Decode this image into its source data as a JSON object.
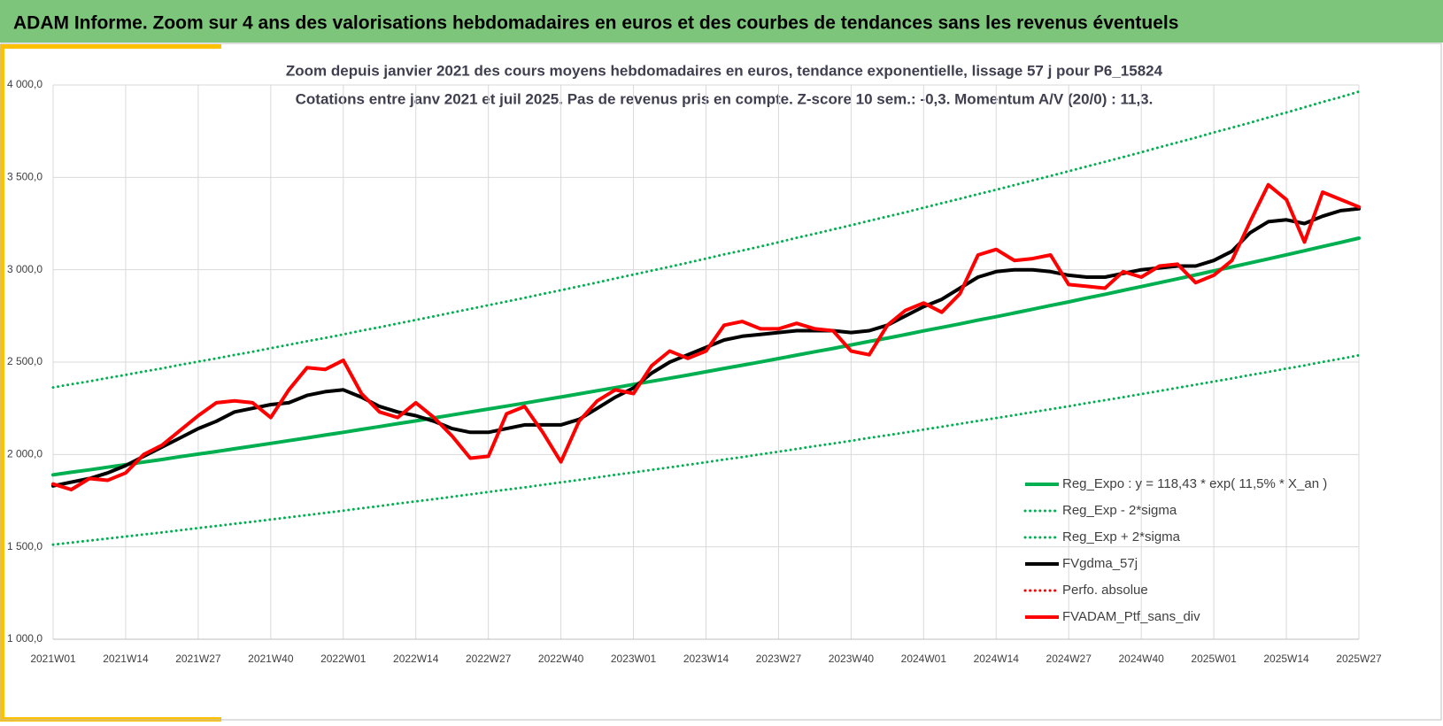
{
  "header": {
    "title": "ADAM Informe. Zoom sur 4 ans des valorisations hebdomadaires en euros et des courbes de tendances sans les revenus éventuels"
  },
  "chart_data": {
    "type": "line",
    "title": "Zoom depuis janvier 2021 des cours moyens hebdomadaires  en euros, tendance exponentielle, lissage 57 j pour P6_15824",
    "subtitle": "Cotations entre janv 2021 et juil 2025. Pas de revenus pris en compte. Z-score 10 sem.: -0,3. Momentum A/V (20/0) : 11,3.",
    "categories": [
      "2021W01",
      null,
      null,
      null,
      "2021W14",
      null,
      null,
      null,
      "2021W27",
      null,
      null,
      null,
      "2021W40",
      null,
      null,
      null,
      "2022W01",
      null,
      null,
      null,
      "2022W14",
      null,
      null,
      null,
      "2022W27",
      null,
      null,
      null,
      "2022W40",
      null,
      null,
      null,
      "2023W01",
      null,
      null,
      null,
      "2023W14",
      null,
      null,
      null,
      "2023W27",
      null,
      null,
      null,
      "2023W40",
      null,
      null,
      null,
      "2024W01",
      null,
      null,
      null,
      "2024W14",
      null,
      null,
      null,
      "2024W27",
      null,
      null,
      null,
      "2024W40",
      null,
      null,
      null,
      "2025W01",
      null,
      null,
      null,
      "2025W14",
      null,
      null,
      null,
      "2025W27"
    ],
    "ylim": [
      1000,
      4000
    ],
    "yticks": [
      {
        "value": 1000,
        "label": "1 000,0"
      },
      {
        "value": 1500,
        "label": "1 500,0"
      },
      {
        "value": 2000,
        "label": "2 000,0"
      },
      {
        "value": 2500,
        "label": "2 500,0"
      },
      {
        "value": 3000,
        "label": "3 000,0"
      },
      {
        "value": 3500,
        "label": "3 500,0"
      },
      {
        "value": 4000,
        "label": "4 000,0"
      }
    ],
    "grid": true,
    "legend": "right",
    "series": [
      {
        "name": "Reg_Expo : y = 118,43 * exp( 11,5% *  X_an )",
        "color": "#00b050",
        "style": "solid",
        "width": 4,
        "values": [
          1890,
          1904,
          1917,
          1931,
          1945,
          1959,
          1973,
          1988,
          2002,
          2016,
          2031,
          2045,
          2060,
          2075,
          2090,
          2105,
          2120,
          2136,
          2151,
          2167,
          2182,
          2198,
          2214,
          2230,
          2246,
          2262,
          2278,
          2295,
          2311,
          2328,
          2345,
          2362,
          2379,
          2396,
          2413,
          2430,
          2448,
          2466,
          2483,
          2501,
          2519,
          2538,
          2556,
          2574,
          2593,
          2612,
          2630,
          2649,
          2669,
          2688,
          2707,
          2727,
          2746,
          2766,
          2786,
          2806,
          2826,
          2847,
          2867,
          2888,
          2909,
          2930,
          2951,
          2972,
          2994,
          3015,
          3037,
          3059,
          3081,
          3103,
          3126,
          3148,
          3171
        ]
      },
      {
        "name": "Reg_Exp - 2*sigma",
        "color": "#00b050",
        "style": "dotted",
        "width": 3,
        "values": [
          1512,
          1523,
          1534,
          1545,
          1556,
          1567,
          1578,
          1590,
          1602,
          1613,
          1625,
          1636,
          1648,
          1660,
          1672,
          1684,
          1696,
          1709,
          1721,
          1734,
          1746,
          1758,
          1771,
          1784,
          1797,
          1810,
          1822,
          1836,
          1849,
          1862,
          1876,
          1890,
          1903,
          1917,
          1930,
          1944,
          1958,
          1973,
          1986,
          2001,
          2015,
          2030,
          2045,
          2059,
          2074,
          2090,
          2104,
          2119,
          2135,
          2150,
          2166,
          2182,
          2197,
          2213,
          2229,
          2245,
          2261,
          2278,
          2294,
          2310,
          2327,
          2344,
          2361,
          2378,
          2395,
          2412,
          2430,
          2447,
          2465,
          2482,
          2501,
          2518,
          2537
        ]
      },
      {
        "name": "Reg_Exp + 2*sigma",
        "color": "#00b050",
        "style": "dotted",
        "width": 3,
        "values": [
          2363,
          2380,
          2396,
          2414,
          2431,
          2449,
          2466,
          2485,
          2503,
          2520,
          2539,
          2556,
          2575,
          2594,
          2613,
          2631,
          2650,
          2670,
          2689,
          2709,
          2728,
          2748,
          2768,
          2788,
          2808,
          2828,
          2848,
          2869,
          2889,
          2910,
          2931,
          2953,
          2974,
          2995,
          3016,
          3038,
          3060,
          3083,
          3104,
          3126,
          3149,
          3173,
          3195,
          3218,
          3241,
          3265,
          3288,
          3311,
          3336,
          3360,
          3384,
          3409,
          3433,
          3458,
          3483,
          3508,
          3533,
          3559,
          3584,
          3610,
          3636,
          3663,
          3689,
          3715,
          3743,
          3769,
          3796,
          3824,
          3851,
          3879,
          3908,
          3935,
          3964
        ]
      },
      {
        "name": "FVgdma_57j",
        "color": "#000000",
        "style": "solid",
        "width": 4,
        "values": [
          1830,
          1850,
          1870,
          1900,
          1940,
          1990,
          2040,
          2090,
          2140,
          2180,
          2230,
          2250,
          2270,
          2280,
          2320,
          2340,
          2350,
          2310,
          2260,
          2230,
          2210,
          2180,
          2140,
          2120,
          2120,
          2140,
          2160,
          2160,
          2160,
          2190,
          2250,
          2310,
          2360,
          2440,
          2500,
          2540,
          2580,
          2620,
          2640,
          2650,
          2660,
          2670,
          2670,
          2670,
          2660,
          2670,
          2700,
          2750,
          2800,
          2840,
          2900,
          2960,
          2990,
          3000,
          3000,
          2990,
          2970,
          2960,
          2960,
          2980,
          3000,
          3010,
          3020,
          3020,
          3050,
          3100,
          3200,
          3260,
          3270,
          3250,
          3290,
          3320,
          3330
        ]
      },
      {
        "name": "Perfo. absolue",
        "color": "#ff0000",
        "style": "dotted",
        "width": 3,
        "values": [
          null,
          null,
          null,
          null,
          null,
          null,
          null,
          null,
          null,
          null,
          null,
          null,
          null,
          null,
          null,
          null,
          null,
          null,
          null,
          null,
          null,
          null,
          null,
          null,
          null,
          null,
          null,
          null,
          null,
          null,
          null,
          null,
          null,
          null,
          null,
          null,
          null,
          null,
          null,
          null,
          null,
          null,
          null,
          null,
          null,
          null,
          null,
          null,
          null,
          null,
          null,
          null,
          null,
          null,
          null,
          null,
          null,
          null,
          null,
          null,
          null,
          null,
          null,
          null,
          null,
          null,
          null,
          null,
          null,
          null,
          null,
          null,
          null
        ]
      },
      {
        "name": "FVADAM_Ptf_sans_div",
        "color": "#ff0000",
        "style": "solid",
        "width": 4,
        "values": [
          1840,
          1810,
          1870,
          1860,
          1900,
          2000,
          2050,
          2130,
          2210,
          2280,
          2290,
          2280,
          2200,
          2350,
          2470,
          2460,
          2510,
          2330,
          2230,
          2200,
          2280,
          2200,
          2100,
          1980,
          1990,
          2220,
          2260,
          2120,
          1960,
          2180,
          2290,
          2350,
          2330,
          2480,
          2560,
          2520,
          2560,
          2700,
          2720,
          2680,
          2680,
          2710,
          2680,
          2670,
          2560,
          2540,
          2700,
          2780,
          2820,
          2770,
          2870,
          3080,
          3110,
          3050,
          3060,
          3080,
          2920,
          2910,
          2900,
          2990,
          2960,
          3020,
          3030,
          2930,
          2970,
          3050,
          3260,
          3460,
          3380,
          3150,
          3420,
          3380,
          3340
        ]
      }
    ]
  }
}
